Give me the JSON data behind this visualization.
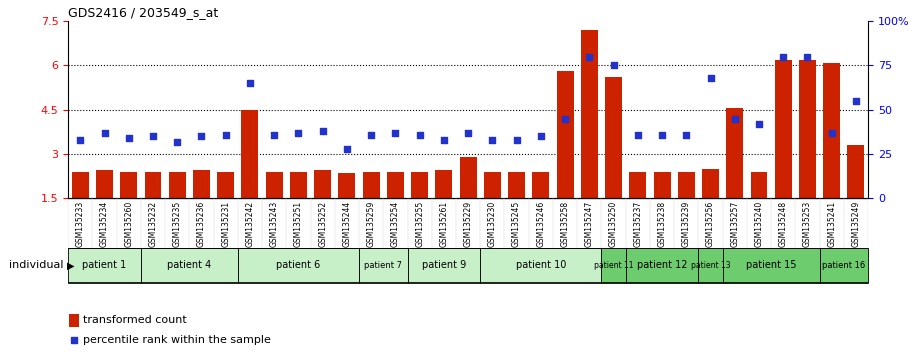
{
  "title": "GDS2416 / 203549_s_at",
  "samples": [
    "GSM135233",
    "GSM135234",
    "GSM135260",
    "GSM135232",
    "GSM135235",
    "GSM135236",
    "GSM135231",
    "GSM135242",
    "GSM135243",
    "GSM135251",
    "GSM135252",
    "GSM135244",
    "GSM135259",
    "GSM135254",
    "GSM135255",
    "GSM135261",
    "GSM135229",
    "GSM135230",
    "GSM135245",
    "GSM135246",
    "GSM135258",
    "GSM135247",
    "GSM135250",
    "GSM135237",
    "GSM135238",
    "GSM135239",
    "GSM135256",
    "GSM135257",
    "GSM135240",
    "GSM135248",
    "GSM135253",
    "GSM135241",
    "GSM135249"
  ],
  "bar_values": [
    2.4,
    2.45,
    2.4,
    2.4,
    2.4,
    2.45,
    2.4,
    4.5,
    2.4,
    2.4,
    2.45,
    2.35,
    2.4,
    2.4,
    2.4,
    2.45,
    2.9,
    2.4,
    2.4,
    2.4,
    5.8,
    7.2,
    5.6,
    2.4,
    2.4,
    2.4,
    2.5,
    4.55,
    2.4,
    6.2,
    6.2,
    6.1,
    3.3
  ],
  "dot_values": [
    33,
    37,
    34,
    35,
    32,
    35,
    36,
    65,
    36,
    37,
    38,
    28,
    36,
    37,
    36,
    33,
    37,
    33,
    33,
    35,
    45,
    80,
    75,
    36,
    36,
    36,
    68,
    45,
    42,
    80,
    80,
    37,
    55
  ],
  "patients": [
    {
      "label": "patient 1",
      "start": 0,
      "end": 3,
      "color": "#c8f0c8"
    },
    {
      "label": "patient 4",
      "start": 3,
      "end": 7,
      "color": "#c8f0c8"
    },
    {
      "label": "patient 6",
      "start": 7,
      "end": 12,
      "color": "#c8f0c8"
    },
    {
      "label": "patient 7",
      "start": 12,
      "end": 14,
      "color": "#c8f0c8"
    },
    {
      "label": "patient 9",
      "start": 14,
      "end": 17,
      "color": "#c8f0c8"
    },
    {
      "label": "patient 10",
      "start": 17,
      "end": 22,
      "color": "#c8f0c8"
    },
    {
      "label": "patient 11",
      "start": 22,
      "end": 23,
      "color": "#6dcc6d"
    },
    {
      "label": "patient 12",
      "start": 23,
      "end": 26,
      "color": "#6dcc6d"
    },
    {
      "label": "patient 13",
      "start": 26,
      "end": 27,
      "color": "#6dcc6d"
    },
    {
      "label": "patient 15",
      "start": 27,
      "end": 31,
      "color": "#6dcc6d"
    },
    {
      "label": "patient 16",
      "start": 31,
      "end": 33,
      "color": "#6dcc6d"
    }
  ],
  "bar_color": "#cc2200",
  "dot_color": "#2233cc",
  "ylim_left": [
    1.5,
    7.5
  ],
  "ylim_right": [
    0,
    100
  ],
  "yticks_left": [
    1.5,
    3.0,
    4.5,
    6.0,
    7.5
  ],
  "ytick_labels_left": [
    "1.5",
    "3",
    "4.5",
    "6",
    "7.5"
  ],
  "yticks_right": [
    0,
    25,
    50,
    75,
    100
  ],
  "ytick_labels_right": [
    "0",
    "25",
    "50",
    "75",
    "100%"
  ],
  "background_color": "#ffffff",
  "grid_dotted_values": [
    3.0,
    4.5,
    6.0
  ]
}
